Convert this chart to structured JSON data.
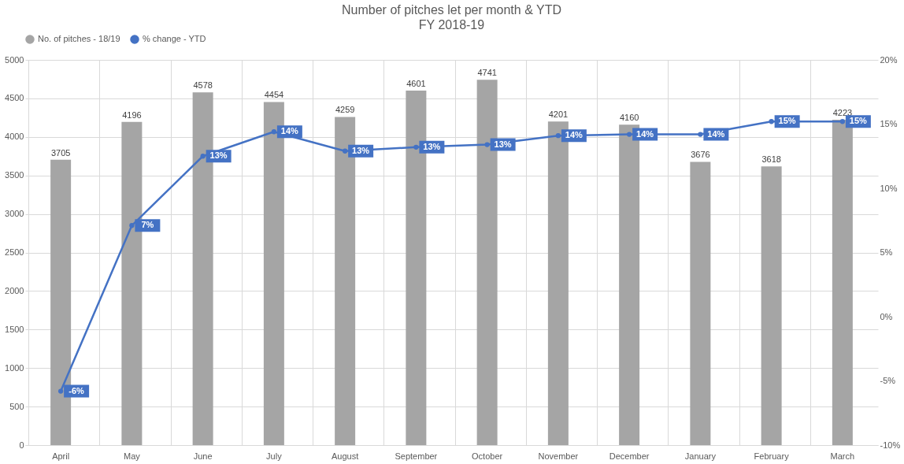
{
  "chart_data": {
    "type": "bar",
    "title": "Number of pitches let per month & YTD",
    "subtitle": "FY 2018-19",
    "categories": [
      "April",
      "May",
      "June",
      "July",
      "August",
      "September",
      "October",
      "November",
      "December",
      "January",
      "February",
      "March"
    ],
    "series": [
      {
        "name": "No. of pitches - 18/19",
        "color": "#a5a5a5",
        "values": [
          3705,
          4196,
          4578,
          4454,
          4259,
          4601,
          4741,
          4201,
          4160,
          3676,
          3618,
          4223
        ],
        "data_labels": true
      },
      {
        "name": "% change - YTD",
        "type": "line",
        "axis": "y2",
        "color": "#4472c4",
        "marker": "circle",
        "values": [
          -5.8,
          7.1,
          12.5,
          14.4,
          12.9,
          13.2,
          13.4,
          14.1,
          14.2,
          14.2,
          15.2,
          15.2
        ],
        "value_labels": [
          "-6%",
          "7%",
          "13%",
          "14%",
          "13%",
          "13%",
          "13%",
          "14%",
          "14%",
          "14%",
          "15%",
          "15%"
        ]
      }
    ],
    "ylim": [
      0,
      5000
    ],
    "yticks": [
      0,
      500,
      1000,
      1500,
      2000,
      2500,
      3000,
      3500,
      4000,
      4500,
      5000
    ],
    "y2lim": [
      -10,
      20
    ],
    "y2ticks": [
      {
        "value": -10,
        "label": "-10%"
      },
      {
        "value": -5,
        "label": "-5%"
      },
      {
        "value": 0,
        "label": "0%"
      },
      {
        "value": 5,
        "label": "5%"
      },
      {
        "value": 10,
        "label": "10%"
      },
      {
        "value": 15,
        "label": "15%"
      },
      {
        "value": 20,
        "label": "20%"
      }
    ],
    "grid": true,
    "legend": "top"
  }
}
